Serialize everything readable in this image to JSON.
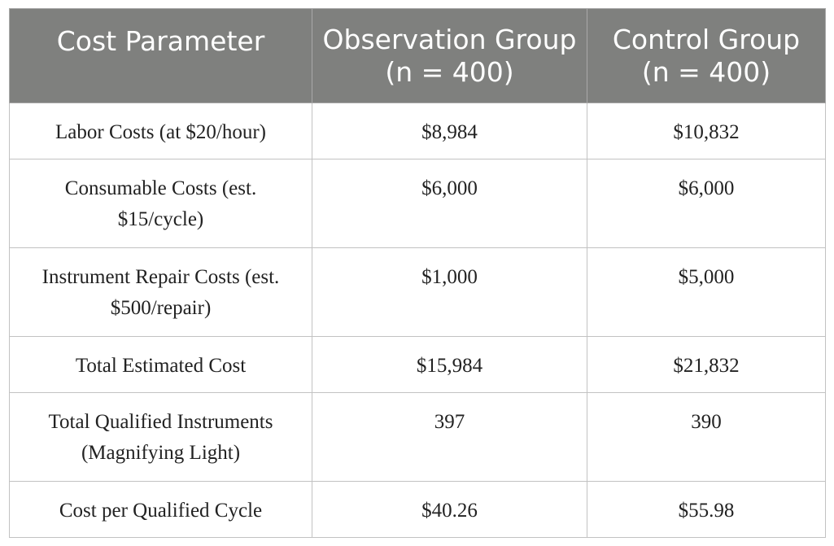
{
  "table": {
    "headers": [
      "Cost Parameter",
      "Observation Group (n = 400)",
      "Control Group (n = 400)"
    ],
    "rows": [
      [
        "Labor Costs (at $20/hour)",
        "$8,984",
        "$10,832"
      ],
      [
        "Consumable Costs (est. $15/cycle)",
        "$6,000",
        "$6,000"
      ],
      [
        "Instrument Repair Costs (est. $500/repair)",
        "$1,000",
        "$5,000"
      ],
      [
        "Total Estimated Cost",
        "$15,984",
        "$21,832"
      ],
      [
        "Total Qualified Instruments (Magnifying Light)",
        "397",
        "390"
      ],
      [
        "Cost per Qualified Cycle",
        "$40.26",
        "$55.98"
      ]
    ]
  },
  "colors": {
    "header_background": "#7f807e",
    "header_text": "#ffffff",
    "body_text": "#222222",
    "border": "#c2c2c2"
  }
}
